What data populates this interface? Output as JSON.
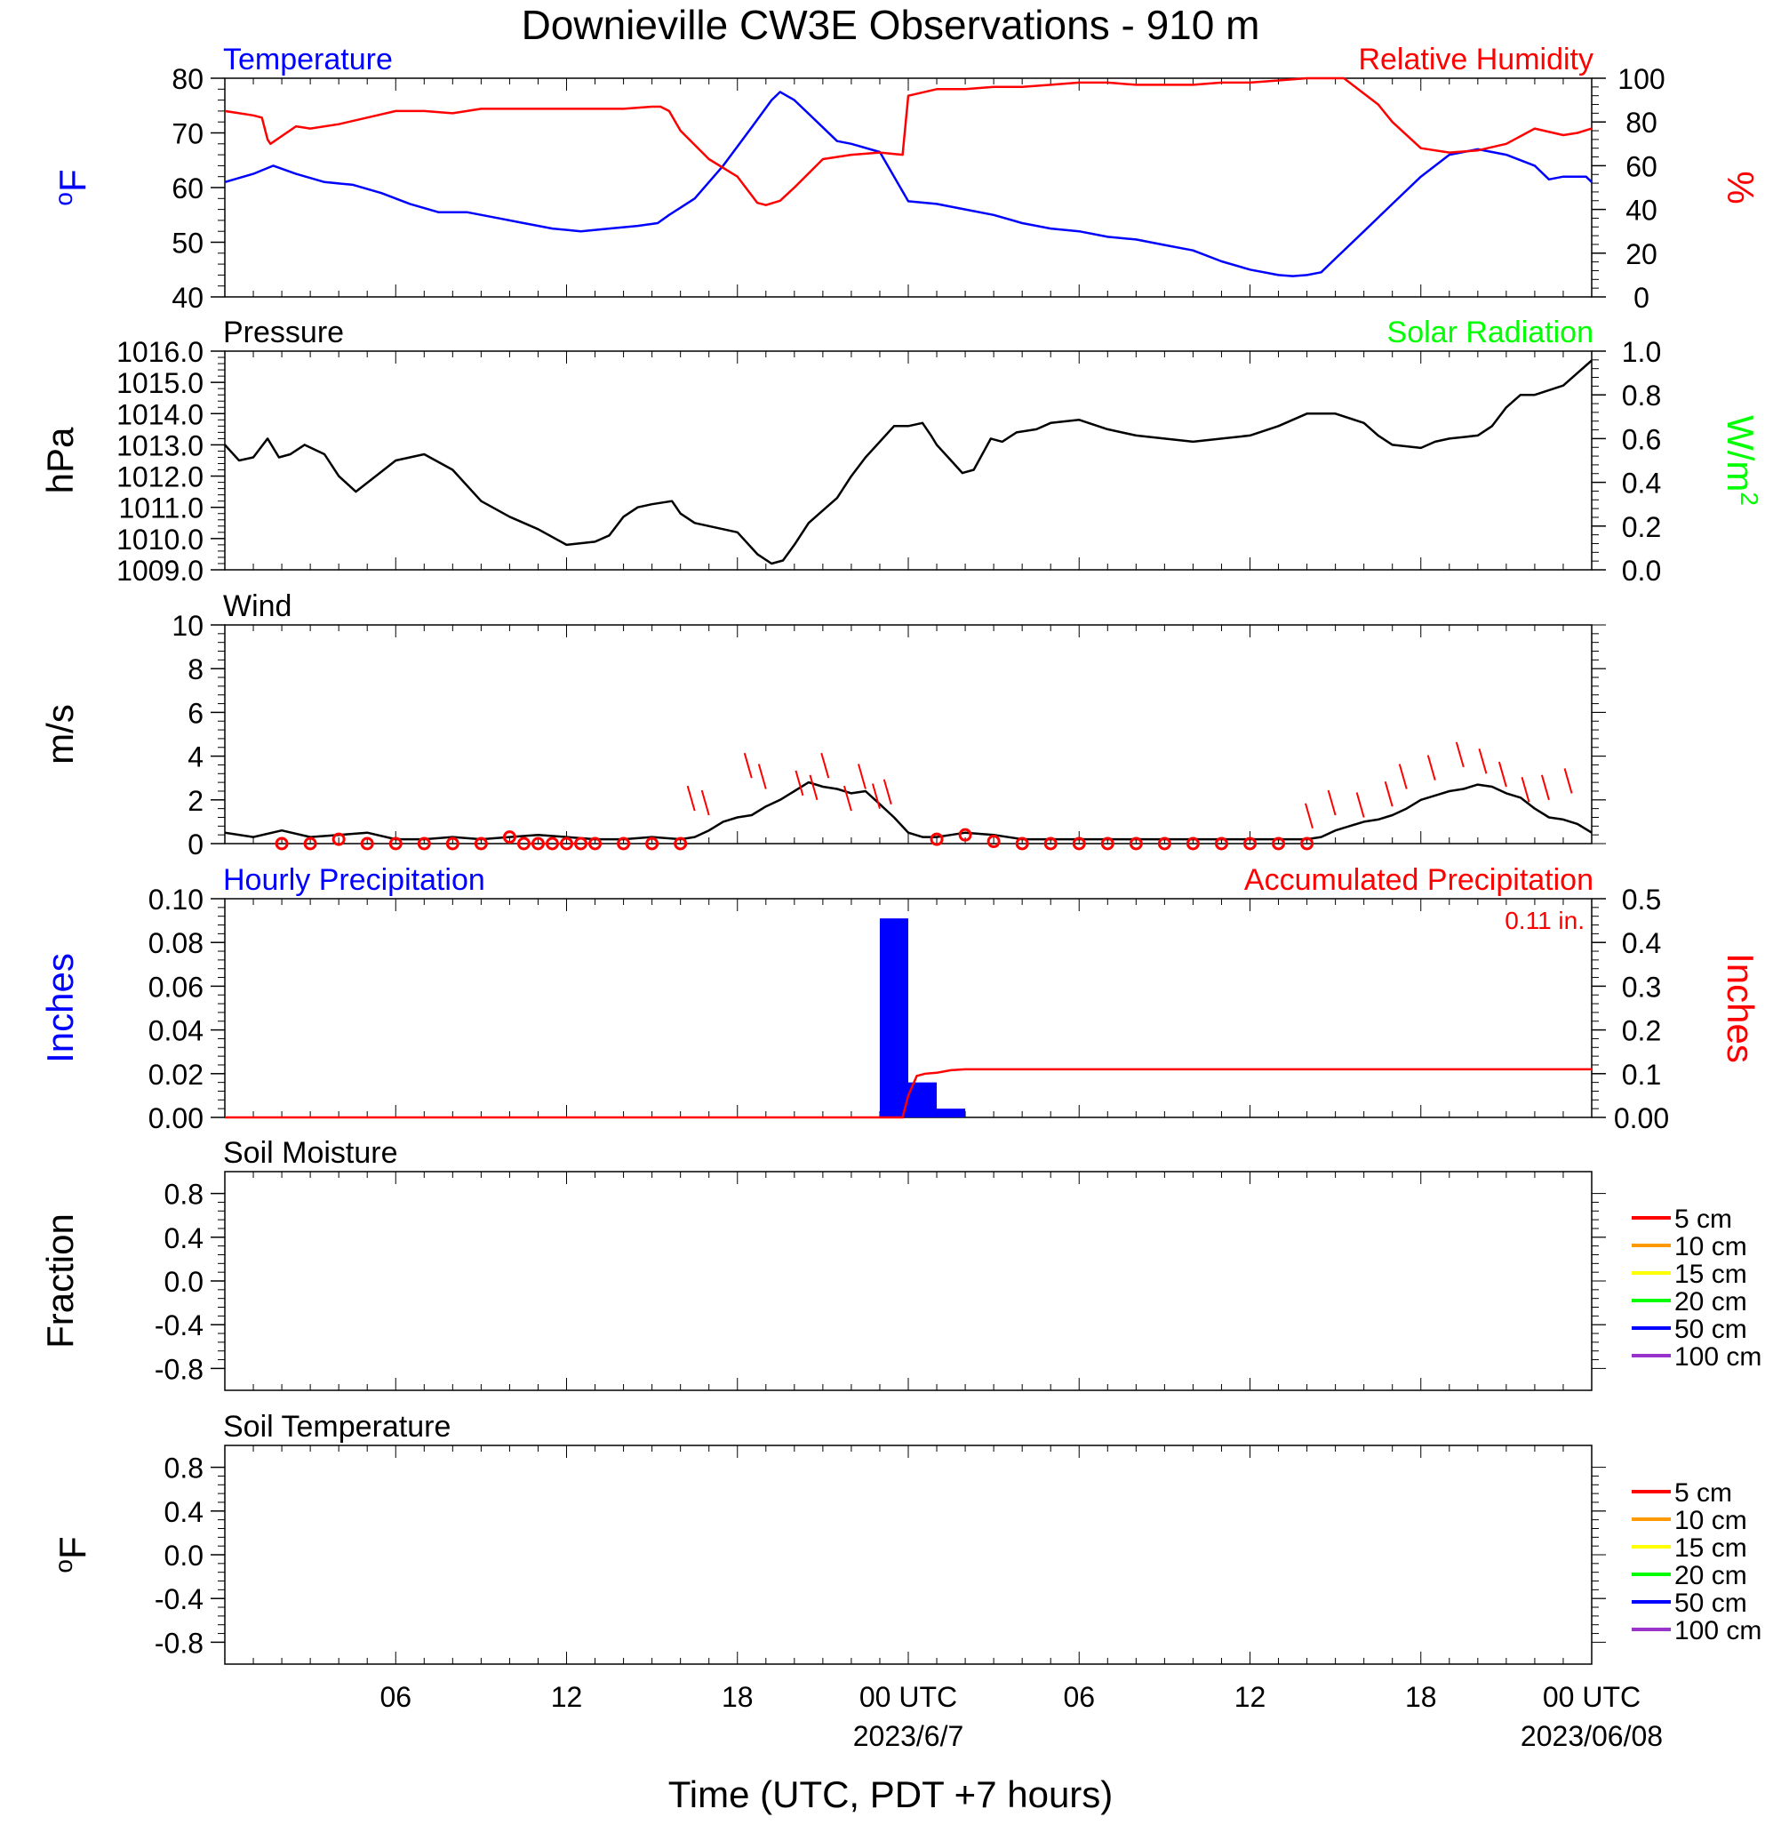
{
  "title": "Downieville CW3E Observations - 910 m",
  "x_axis": {
    "label": "Time (UTC, PDT +7 hours)",
    "range_hours": [
      0,
      48
    ],
    "ticks": [
      {
        "hour": 6,
        "label": "06"
      },
      {
        "hour": 12,
        "label": "12"
      },
      {
        "hour": 18,
        "label": "18"
      },
      {
        "hour": 24,
        "label": "00 UTC"
      },
      {
        "hour": 30,
        "label": "06"
      },
      {
        "hour": 36,
        "label": "12"
      },
      {
        "hour": 42,
        "label": "18"
      },
      {
        "hour": 48,
        "label": "00 UTC"
      }
    ],
    "date_labels": [
      {
        "hour": 24,
        "label": "2023/6/7"
      },
      {
        "hour": 48,
        "label": "2023/06/08"
      }
    ]
  },
  "colors": {
    "temperature": "#0000ff",
    "humidity": "#ff0000",
    "pressure": "#000000",
    "solar": "#00ff00",
    "wind": "#000000",
    "wind_barb": "#ff0000",
    "hourly_precip": "#0000ff",
    "accum_precip": "#ff0000"
  },
  "chart_data": [
    {
      "type": "line",
      "panel_id": "temp-rh",
      "left_title": "Temperature",
      "right_title": "Relative Humidity",
      "ylabel_left": "oF",
      "ylabel_right": "%",
      "ylim_left": [
        40,
        80
      ],
      "ylim_right": [
        0,
        100
      ],
      "yticks_left": [
        40,
        50,
        60,
        70,
        80
      ],
      "yticks_right": [
        0,
        20,
        40,
        60,
        80,
        100
      ],
      "series": [
        {
          "name": "Temperature",
          "axis": "left",
          "x": [
            0,
            1,
            1.7,
            2.5,
            3.5,
            4.5,
            5.5,
            6.5,
            7.5,
            8.5,
            9.5,
            10.5,
            11.5,
            12.5,
            13.5,
            14.5,
            15.2,
            15.6,
            16.5,
            17.5,
            18.5,
            19.2,
            19.5,
            20,
            21,
            21.5,
            22,
            23,
            24,
            25,
            26,
            27,
            28,
            29,
            30,
            31,
            32,
            33,
            34,
            35,
            36,
            37,
            37.5,
            38,
            38.5,
            39,
            40,
            41,
            42,
            43,
            44,
            45,
            46,
            46.5,
            47,
            47.8,
            48
          ],
          "y": [
            61,
            62.5,
            64,
            62.5,
            61,
            60.5,
            59,
            57,
            55.5,
            55.5,
            54.5,
            53.5,
            52.5,
            52,
            52.5,
            53,
            53.5,
            55,
            58,
            64,
            71,
            76,
            77.5,
            76,
            71,
            68.5,
            68,
            66.5,
            57.5,
            57,
            56,
            55,
            53.5,
            52.5,
            52,
            51,
            50.5,
            49.5,
            48.5,
            46.5,
            45,
            44,
            43.8,
            44,
            44.5,
            47,
            52,
            57,
            62,
            66,
            67,
            66,
            64,
            61.5,
            62,
            62,
            61
          ]
        },
        {
          "name": "Relative Humidity",
          "axis": "right",
          "x": [
            0,
            1,
            1.3,
            1.5,
            1.6,
            2.5,
            3,
            4,
            5,
            6,
            7,
            8,
            9,
            10,
            11,
            12,
            13,
            14,
            15,
            15.3,
            15.6,
            16,
            17,
            18,
            18.7,
            19,
            19.5,
            20,
            21,
            22,
            23,
            23.8,
            24,
            25,
            26,
            27,
            28,
            29,
            30,
            31,
            32,
            33,
            34,
            35,
            36,
            37,
            38,
            39,
            39.3,
            40,
            40.5,
            41,
            42,
            43,
            44,
            45,
            46,
            47,
            47.5,
            48
          ],
          "y": [
            85,
            83,
            82,
            72,
            70,
            78,
            77,
            79,
            82,
            85,
            85,
            84,
            86,
            86,
            86,
            86,
            86,
            86,
            87,
            87,
            85,
            76,
            63,
            55,
            43,
            42,
            44,
            50,
            63,
            65,
            66,
            65,
            92,
            95,
            95,
            96,
            96,
            97,
            98,
            98,
            97,
            97,
            97,
            98,
            98,
            99,
            100,
            100,
            100,
            93,
            88,
            80,
            68,
            66,
            67,
            70,
            77,
            74,
            75,
            77
          ]
        }
      ]
    },
    {
      "type": "line",
      "panel_id": "pressure",
      "left_title": "Pressure",
      "right_title": "Solar Radiation",
      "ylabel_left": "hPa",
      "ylabel_right": "W/m2",
      "ylim_left": [
        1009,
        1016
      ],
      "ylim_right": [
        0,
        1
      ],
      "yticks_left": [
        1009,
        1010,
        1011,
        1012,
        1013,
        1014,
        1015,
        1016
      ],
      "ytick_labels_left": [
        "1009.0",
        "1010.0",
        "1011.0",
        "1012.0",
        "1013.0",
        "1014.0",
        "1015.0",
        "1016.0"
      ],
      "yticks_right": [
        0,
        0.2,
        0.4,
        0.6,
        0.8,
        1.0
      ],
      "ytick_labels_right": [
        "0.0",
        "0.2",
        "0.4",
        "0.6",
        "0.8",
        "1.0"
      ],
      "series": [
        {
          "name": "Pressure",
          "axis": "left",
          "x": [
            0,
            0.5,
            1,
            1.5,
            1.9,
            2.3,
            2.8,
            3.5,
            4,
            4.6,
            5.3,
            6,
            7,
            8,
            9,
            10,
            11,
            12,
            13,
            13.5,
            14,
            14.5,
            15,
            15.7,
            16,
            16.5,
            17,
            18,
            18.7,
            19.2,
            19.6,
            20,
            20.5,
            21,
            21.5,
            22,
            22.5,
            23,
            23.5,
            24,
            24.5,
            24.8,
            25,
            25.5,
            25.9,
            26.3,
            26.9,
            27.3,
            27.8,
            28.5,
            29,
            30,
            31,
            32,
            33,
            34,
            35,
            36,
            37,
            38,
            39,
            40,
            40.5,
            41,
            42,
            42.5,
            43,
            44,
            44.5,
            45,
            45.5,
            46,
            47,
            47.5,
            48
          ],
          "y": [
            1013,
            1012.5,
            1012.6,
            1013.2,
            1012.6,
            1012.7,
            1013,
            1012.7,
            1012,
            1011.5,
            1012,
            1012.5,
            1012.7,
            1012.2,
            1011.2,
            1010.7,
            1010.3,
            1009.8,
            1009.9,
            1010.1,
            1010.7,
            1011,
            1011.1,
            1011.2,
            1010.8,
            1010.5,
            1010.4,
            1010.2,
            1009.5,
            1009.2,
            1009.3,
            1009.8,
            1010.5,
            1010.9,
            1011.3,
            1012,
            1012.6,
            1013.1,
            1013.6,
            1013.6,
            1013.7,
            1013.3,
            1013.0,
            1012.5,
            1012.1,
            1012.2,
            1013.2,
            1013.1,
            1013.4,
            1013.5,
            1013.7,
            1013.8,
            1013.5,
            1013.3,
            1013.2,
            1013.1,
            1013.2,
            1013.3,
            1013.6,
            1014,
            1014,
            1013.7,
            1013.3,
            1013,
            1012.9,
            1013.1,
            1013.2,
            1013.3,
            1013.6,
            1014.2,
            1014.6,
            1014.6,
            1014.9,
            1015.3,
            1015.7
          ]
        }
      ]
    },
    {
      "type": "line",
      "panel_id": "wind",
      "left_title": "Wind",
      "ylabel_left": "m/s",
      "ylim_left": [
        0,
        10
      ],
      "yticks_left": [
        0,
        2,
        4,
        6,
        8,
        10
      ],
      "series": [
        {
          "name": "Wind",
          "axis": "left",
          "x": [
            0,
            1,
            2,
            3,
            4,
            5,
            6,
            7,
            8,
            9,
            10,
            11,
            12,
            13,
            14,
            15,
            16,
            16.5,
            17,
            17.5,
            18,
            18.5,
            19,
            19.5,
            20,
            20.5,
            21,
            21.5,
            22,
            22.5,
            23,
            23.5,
            24,
            24.5,
            25,
            25.5,
            26,
            27,
            28,
            29,
            30,
            31,
            32,
            33,
            34,
            35,
            36,
            37,
            38,
            38.5,
            39,
            39.5,
            40,
            40.5,
            41,
            41.5,
            42,
            42.5,
            43,
            43.5,
            44,
            44.5,
            45,
            45.5,
            46,
            46.5,
            47,
            47.5,
            48
          ],
          "y": [
            0.5,
            0.3,
            0.6,
            0.3,
            0.4,
            0.5,
            0.2,
            0.2,
            0.3,
            0.2,
            0.3,
            0.4,
            0.3,
            0.2,
            0.2,
            0.3,
            0.2,
            0.3,
            0.6,
            1.0,
            1.2,
            1.3,
            1.7,
            2.0,
            2.4,
            2.8,
            2.6,
            2.5,
            2.3,
            2.4,
            1.8,
            1.2,
            0.5,
            0.3,
            0.3,
            0.4,
            0.5,
            0.4,
            0.2,
            0.2,
            0.2,
            0.2,
            0.2,
            0.2,
            0.2,
            0.2,
            0.2,
            0.2,
            0.2,
            0.3,
            0.6,
            0.8,
            1.0,
            1.1,
            1.3,
            1.6,
            2.0,
            2.2,
            2.4,
            2.5,
            2.7,
            2.6,
            2.3,
            2.1,
            1.6,
            1.2,
            1.1,
            0.9,
            0.5
          ]
        }
      ],
      "hourly_wind_speed": [
        0,
        0,
        0.2,
        0,
        0,
        0,
        0,
        0,
        0.3,
        0,
        0,
        0,
        0,
        0,
        0,
        0.2,
        0.4,
        0.1,
        0,
        0,
        0,
        0,
        0,
        0,
        0,
        0,
        0,
        0,
        0,
        0,
        0,
        0
      ],
      "hourly_wind_hours": [
        2,
        3,
        4,
        5,
        6,
        7,
        8,
        9,
        10,
        11,
        12,
        13,
        14,
        15,
        16,
        25,
        26,
        27,
        28,
        29,
        30,
        31,
        32,
        33,
        34,
        35,
        36,
        37,
        38,
        10.5,
        11.5,
        12.5
      ],
      "barb_hours": [
        16.5,
        17,
        18.5,
        19,
        20.3,
        20.8,
        21.2,
        22,
        22.5,
        23,
        23.4,
        38.2,
        39,
        40,
        41,
        41.5,
        42.5,
        43.5,
        44.3,
        45,
        45.8,
        46.5,
        47.3
      ],
      "barb_speeds": [
        1.5,
        1.3,
        3.0,
        2.5,
        2.2,
        2.0,
        3.0,
        1.5,
        2.5,
        1.6,
        1.8,
        0.7,
        1.3,
        1.2,
        1.7,
        2.5,
        2.9,
        3.5,
        3.2,
        2.6,
        1.9,
        2.0,
        2.3
      ]
    },
    {
      "type": "bar",
      "panel_id": "precip",
      "left_title": "Hourly Precipitation",
      "right_title": "Accumulated Precipitation",
      "total_label": "0.11 in.",
      "ylabel_left": "Inches",
      "ylabel_right": "Inches",
      "ylim_left": [
        0,
        0.1
      ],
      "ylim_right": [
        0,
        0.5
      ],
      "yticks_left": [
        0,
        0.02,
        0.04,
        0.06,
        0.08,
        0.1
      ],
      "ytick_labels_left": [
        "0.00",
        "0.02",
        "0.04",
        "0.06",
        "0.08",
        "0.10"
      ],
      "yticks_right": [
        0,
        0.1,
        0.2,
        0.3,
        0.4,
        0.5
      ],
      "ytick_labels_right": [
        "0.00",
        "0.1",
        "0.2",
        "0.3",
        "0.4",
        "0.5"
      ],
      "bars": [
        {
          "hour_start": 23,
          "hour_end": 24,
          "value": 0.091
        },
        {
          "hour_start": 24,
          "hour_end": 25,
          "value": 0.016
        },
        {
          "hour_start": 25,
          "hour_end": 26,
          "value": 0.004
        }
      ],
      "accumulated": {
        "x": [
          0,
          23.8,
          24.0,
          24.3,
          24.6,
          25.0,
          25.5,
          26,
          48
        ],
        "y": [
          0,
          0,
          0.05,
          0.095,
          0.1,
          0.102,
          0.108,
          0.11,
          0.11
        ]
      }
    },
    {
      "type": "line",
      "panel_id": "soil-moisture",
      "left_title": "Soil Moisture",
      "ylabel_left": "Fraction",
      "ylim_left": [
        -1,
        1
      ],
      "yticks_left": [
        -0.8,
        -0.4,
        0,
        0.4,
        0.8
      ],
      "ytick_labels_left": [
        "-0.8",
        "-0.4",
        "0.0",
        "0.4",
        "0.8"
      ],
      "series": [],
      "legend": [
        "5 cm",
        "10 cm",
        "15 cm",
        "20 cm",
        "50 cm",
        "100 cm"
      ]
    },
    {
      "type": "line",
      "panel_id": "soil-temp",
      "left_title": "Soil Temperature",
      "ylabel_left": "oF",
      "ylim_left": [
        -1,
        1
      ],
      "yticks_left": [
        -0.8,
        -0.4,
        0,
        0.4,
        0.8
      ],
      "ytick_labels_left": [
        "-0.8",
        "-0.4",
        "0.0",
        "0.4",
        "0.8"
      ],
      "series": [],
      "legend": [
        "5 cm",
        "10 cm",
        "15 cm",
        "20 cm",
        "50 cm",
        "100 cm"
      ]
    }
  ],
  "legend_colors": [
    "#ff0000",
    "#ff9900",
    "#ffff00",
    "#00ff00",
    "#0000ff",
    "#9933cc"
  ]
}
